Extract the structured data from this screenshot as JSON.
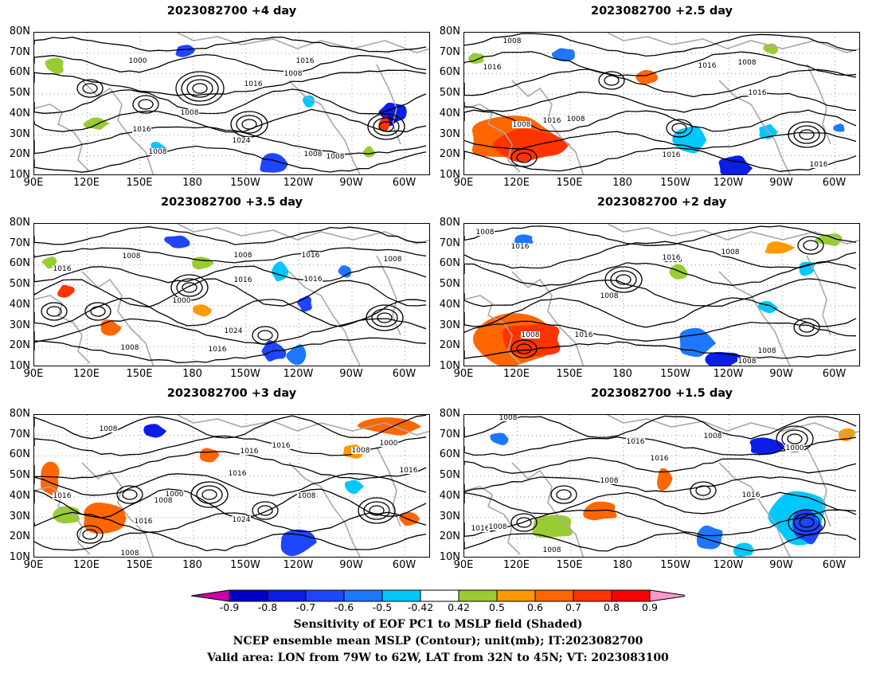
{
  "panels": [
    {
      "title": "2023082700 +4 day"
    },
    {
      "title": "2023082700 +2.5 day"
    },
    {
      "title": "2023082700 +3.5 day"
    },
    {
      "title": "2023082700 +2 day"
    },
    {
      "title": "2023082700 +3 day"
    },
    {
      "title": "2023082700 +1.5 day"
    }
  ],
  "lat_labels": [
    "80N",
    "70N",
    "60N",
    "50N",
    "40N",
    "30N",
    "20N",
    "10N"
  ],
  "lon_labels": [
    "90E",
    "120E",
    "150E",
    "180",
    "150W",
    "120W",
    "90W",
    "60W"
  ],
  "colorbar": {
    "labels": [
      "-0.9",
      "-0.8",
      "-0.7",
      "-0.6",
      "-0.5",
      "-0.42",
      "0.42",
      "0.5",
      "0.6",
      "0.7",
      "0.8",
      "0.9"
    ],
    "colors": [
      "#cc00aa",
      "#0000c8",
      "#0a1ee6",
      "#1e46ff",
      "#1e78ff",
      "#00c8ff",
      "#ffffff",
      "#99cc33",
      "#ff9900",
      "#ff6600",
      "#ff3300",
      "#ff0000",
      "#ff99cc"
    ]
  },
  "caption": {
    "line1": "Sensitivity of EOF PC1 to MSLP field (Shaded)",
    "line2": "NCEP ensemble mean MSLP (Contour); unit(mb); IT:2023082700",
    "line3": "Valid area: LON from 79W to 62W, LAT from 32N to 45N; VT: 2023083100"
  },
  "contour_labels": {
    "p0": [
      "1000",
      "1016",
      "1008",
      "1016",
      "1008",
      "1016",
      "1008",
      "1024",
      "1008",
      "1008"
    ],
    "p1": [
      "1008",
      "1016",
      "1008",
      "1016",
      "1016",
      "1008",
      "1008",
      "1016",
      "1016",
      "1016"
    ],
    "p2": [
      "1008",
      "1016",
      "1008",
      "1016",
      "1000",
      "1016",
      "1024",
      "1016",
      "1008",
      "1008",
      "1016"
    ],
    "p3": [
      "1008",
      "1016",
      "1008",
      "1016",
      "1008",
      "1016",
      "1016",
      "1008",
      "1008",
      "1008"
    ],
    "p4": [
      "1008",
      "1016",
      "1016",
      "1000",
      "1008",
      "1016",
      "1016",
      "1008",
      "1024",
      "1016",
      "1008",
      "1000",
      "1008",
      "1016"
    ],
    "p5": [
      "1008",
      "1016",
      "1016",
      "1008",
      "1008",
      "1000",
      "1016",
      "1016",
      "1008",
      "1008"
    ]
  }
}
